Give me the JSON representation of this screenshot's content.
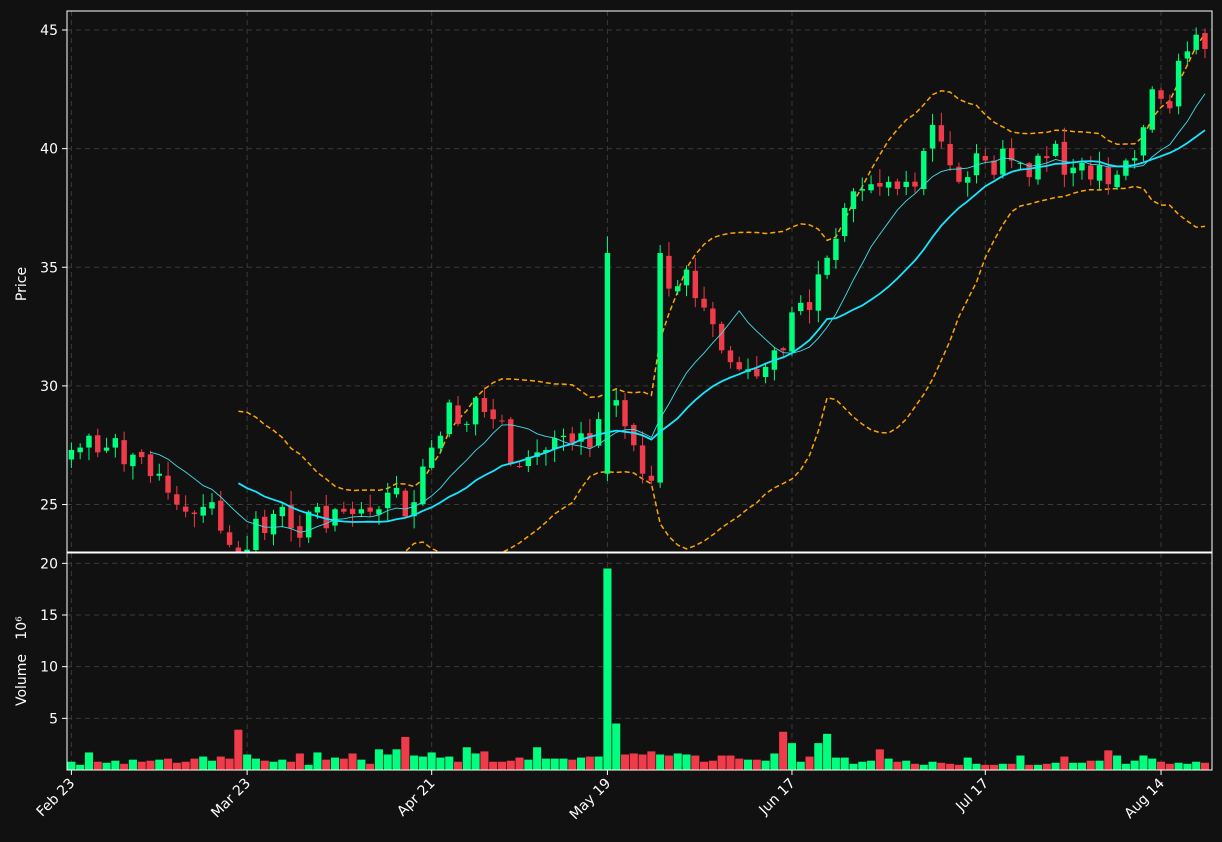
{
  "chart_data": {
    "type": "candlestick",
    "price_axis": {
      "label": "Price",
      "ylim": [
        23.0,
        45.8
      ],
      "ticks": [
        25,
        30,
        35,
        40,
        45
      ]
    },
    "volume_axis": {
      "label": "Volume",
      "exponent_label": "10⁶",
      "ylim": [
        0,
        21
      ],
      "ticks": [
        5,
        10,
        15,
        20
      ]
    },
    "x_ticks": [
      {
        "label": "Feb 23",
        "index": 0
      },
      {
        "label": "Mar 23",
        "index": 20
      },
      {
        "label": "Apr 21",
        "index": 41
      },
      {
        "label": "May 19",
        "index": 61
      },
      {
        "label": "Jun 17",
        "index": 82
      },
      {
        "label": "Jul 17",
        "index": 104
      },
      {
        "label": "Aug 14",
        "index": 124
      }
    ],
    "grid": true,
    "colors": {
      "background": "#111111",
      "up": "#00ff7f",
      "down": "#ef3b4a",
      "ma_fast": "#40e0e8",
      "ma_slow": "#18e6ff",
      "bollinger": "#ffa500",
      "grid": "#3a3a3a",
      "frame": "#ffffff"
    },
    "close": [
      27.3,
      27.4,
      27.9,
      27.2,
      27.4,
      27.8,
      26.7,
      27.1,
      27.0,
      26.2,
      26.3,
      25.5,
      25.0,
      24.7,
      24.6,
      24.9,
      25.1,
      23.9,
      23.3,
      22.7,
      23.1,
      24.4,
      23.8,
      24.6,
      24.9,
      24.0,
      23.6,
      24.7,
      24.9,
      24.0,
      24.8,
      24.7,
      24.6,
      24.8,
      24.7,
      24.8,
      25.5,
      25.7,
      24.5,
      25.1,
      26.6,
      27.4,
      27.9,
      29.3,
      28.4,
      28.4,
      29.5,
      28.9,
      28.6,
      28.5,
      26.7,
      26.6,
      27.0,
      27.2,
      27.3,
      27.8,
      27.9,
      27.6,
      28.0,
      27.4,
      28.6,
      29.2,
      29.4,
      28.3,
      27.5,
      26.3,
      26.0,
      35.6,
      34.1,
      34.2,
      34.9,
      33.7,
      33.3,
      32.6,
      31.5,
      31.0,
      30.7,
      30.7,
      30.4,
      30.8,
      31.5,
      31.5,
      33.1,
      33.5,
      33.2,
      34.7,
      35.4,
      36.2,
      37.5,
      38.2,
      38.3,
      38.5,
      38.4,
      38.6,
      38.3,
      38.6,
      38.4,
      39.9,
      41.0,
      40.3,
      39.3,
      38.6,
      38.8,
      39.8,
      39.5,
      38.9,
      40.0,
      39.5,
      39.4,
      38.8,
      39.7,
      39.6,
      40.2,
      38.9,
      39.2,
      39.4,
      38.7,
      39.3,
      38.5,
      38.9,
      39.5,
      39.6,
      40.9,
      42.5,
      42.1,
      41.7,
      43.7,
      44.1,
      44.8,
      44.2
    ],
    "volume": [
      0.8,
      0.5,
      1.7,
      0.8,
      0.7,
      0.9,
      0.6,
      1.0,
      0.8,
      0.9,
      1.0,
      1.1,
      0.7,
      0.8,
      1.1,
      1.3,
      0.9,
      1.3,
      1.1,
      3.9,
      1.5,
      1.1,
      0.9,
      0.8,
      1.0,
      0.8,
      1.6,
      0.5,
      1.7,
      1.0,
      1.2,
      1.1,
      1.6,
      1.0,
      0.6,
      2.0,
      1.5,
      2.0,
      3.2,
      1.4,
      1.3,
      1.7,
      1.2,
      1.3,
      0.8,
      2.2,
      1.6,
      1.8,
      0.8,
      0.8,
      0.9,
      1.2,
      1.0,
      2.2,
      1.1,
      1.1,
      1.1,
      1.0,
      1.2,
      1.3,
      1.3,
      19.5,
      4.5,
      1.5,
      1.6,
      1.5,
      1.8,
      1.5,
      1.4,
      1.6,
      1.5,
      1.4,
      0.8,
      0.9,
      1.4,
      1.4,
      1.1,
      1.0,
      1.0,
      0.9,
      1.6,
      3.7,
      2.6,
      0.8,
      1.3,
      2.6,
      3.5,
      1.2,
      1.2,
      0.6,
      0.8,
      0.9,
      2.0,
      1.1,
      0.8,
      0.9,
      0.6,
      0.5,
      0.8,
      0.7,
      0.6,
      0.5,
      1.2,
      0.6,
      0.5,
      0.5,
      0.6,
      0.6,
      1.4,
      0.5,
      0.5,
      0.6,
      0.7,
      1.3,
      0.7,
      0.7,
      0.9,
      0.9,
      1.9,
      1.4,
      0.6,
      0.9,
      1.4,
      1.1,
      0.8,
      0.6,
      0.7,
      0.6,
      0.8,
      0.7
    ],
    "moving_averages": [
      {
        "window": 10,
        "color": "#40e0e8",
        "width": 0.9
      },
      {
        "window": 20,
        "color": "#18e6ff",
        "width": 1.8
      }
    ],
    "bollinger_bands": {
      "window": 20,
      "num_std": 2,
      "color": "#ffa500"
    }
  }
}
